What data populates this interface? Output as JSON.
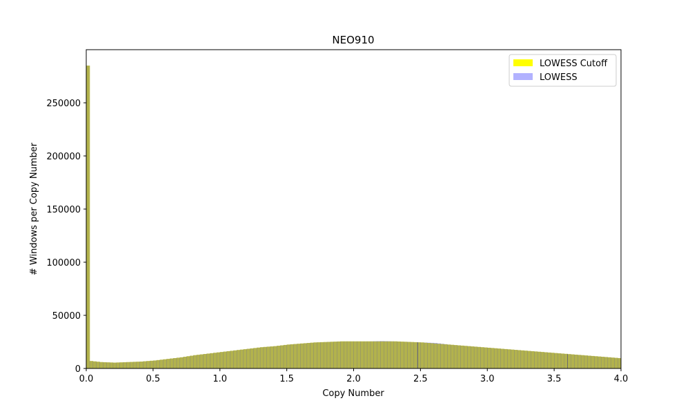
{
  "chart_data": {
    "type": "bar",
    "title": "NEO910",
    "xlabel": "Copy Number",
    "ylabel": "# Windows per Copy Number",
    "xlim": [
      0,
      4.0
    ],
    "ylim": [
      0,
      300000
    ],
    "xticks": [
      "0.0",
      "0.5",
      "1.0",
      "1.5",
      "2.0",
      "2.5",
      "3.0",
      "3.5",
      "4.0"
    ],
    "yticks": [
      "0",
      "50000",
      "100000",
      "150000",
      "200000",
      "250000"
    ],
    "grid": false,
    "legend_position": "top-right",
    "bin_width": 0.025,
    "series": [
      {
        "name": "LOWESS Cutoff",
        "color": "#ffff00",
        "opacity": 1.0,
        "x": [
          0.0,
          0.1,
          0.2,
          0.3,
          0.4,
          0.5,
          0.6,
          0.7,
          0.8,
          0.9,
          1.0,
          1.1,
          1.2,
          1.3,
          1.4,
          1.5,
          1.6,
          1.7,
          1.8,
          1.9,
          2.0,
          2.1,
          2.2,
          2.3,
          2.4,
          2.5,
          2.6,
          2.7,
          2.8,
          2.9,
          3.0,
          3.1,
          3.2,
          3.3,
          3.4,
          3.5,
          3.6,
          3.7,
          3.8,
          3.9,
          4.0
        ],
        "y": [
          285000,
          6000,
          5500,
          6000,
          6500,
          7500,
          9000,
          10500,
          12500,
          14000,
          15500,
          17000,
          18500,
          20000,
          21000,
          22500,
          23500,
          24500,
          25000,
          25500,
          25500,
          25500,
          25500,
          25500,
          25000,
          24500,
          23500,
          22500,
          21500,
          20500,
          19500,
          18500,
          17500,
          16500,
          15500,
          14500,
          13500,
          12500,
          11500,
          10500,
          9500
        ]
      },
      {
        "name": "LOWESS",
        "color": "#0000ff",
        "opacity": 0.3,
        "x": [
          0.0,
          0.1,
          0.2,
          0.3,
          0.4,
          0.5,
          0.6,
          0.7,
          0.8,
          0.9,
          1.0,
          1.1,
          1.2,
          1.3,
          1.4,
          1.5,
          1.6,
          1.7,
          1.8,
          1.9,
          2.0,
          2.1,
          2.2,
          2.3,
          2.4,
          2.5,
          2.6,
          2.7,
          2.8,
          2.9,
          3.0,
          3.1,
          3.2,
          3.3,
          3.4,
          3.5,
          3.6,
          3.7,
          3.8,
          3.9,
          4.0
        ],
        "y": [
          285000,
          6000,
          5500,
          6000,
          6500,
          7500,
          9000,
          10500,
          12500,
          14000,
          15500,
          17000,
          18500,
          20000,
          21000,
          22500,
          23500,
          24500,
          25000,
          25500,
          25500,
          25500,
          25800,
          25500,
          25000,
          24500,
          24000,
          22500,
          21500,
          20500,
          19500,
          18500,
          17500,
          16500,
          15500,
          14500,
          13500,
          12500,
          11500,
          10500,
          9500
        ]
      }
    ],
    "vlines": [
      2.48,
      3.6
    ]
  }
}
